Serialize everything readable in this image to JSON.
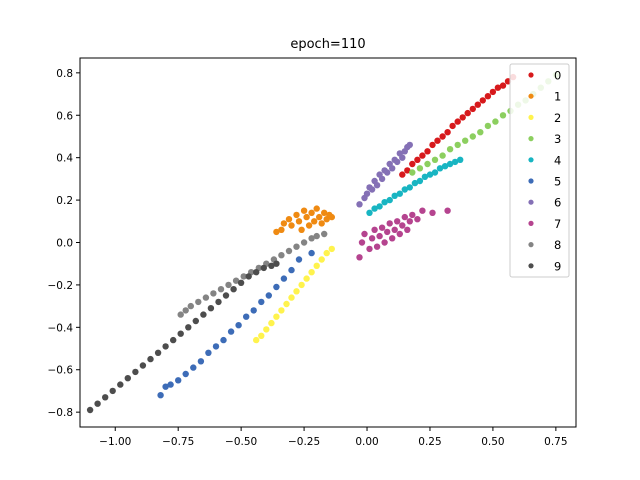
{
  "chart_data": {
    "type": "scatter",
    "title": "epoch=110",
    "xlabel": "",
    "ylabel": "",
    "xlim": [
      -1.14,
      0.83
    ],
    "ylim": [
      -0.87,
      0.87
    ],
    "xticks": [
      -1.0,
      -0.75,
      -0.5,
      -0.25,
      0.0,
      0.25,
      0.5,
      0.75
    ],
    "xtick_labels": [
      "−1.00",
      "−0.75",
      "−0.50",
      "−0.25",
      "0.00",
      "0.25",
      "0.50",
      "0.75"
    ],
    "yticks": [
      -0.8,
      -0.6,
      -0.4,
      -0.2,
      0.0,
      0.2,
      0.4,
      0.6,
      0.8
    ],
    "ytick_labels": [
      "−0.8",
      "−0.6",
      "−0.4",
      "−0.2",
      "0.0",
      "0.2",
      "0.4",
      "0.6",
      "0.8"
    ],
    "grid": false,
    "legend_position": "top-right",
    "series": [
      {
        "name": "0",
        "color": "#d7191c",
        "points": [
          [
            0.14,
            0.32
          ],
          [
            0.16,
            0.34
          ],
          [
            0.18,
            0.37
          ],
          [
            0.2,
            0.39
          ],
          [
            0.22,
            0.41
          ],
          [
            0.24,
            0.43
          ],
          [
            0.26,
            0.46
          ],
          [
            0.28,
            0.48
          ],
          [
            0.3,
            0.5
          ],
          [
            0.32,
            0.52
          ],
          [
            0.34,
            0.55
          ],
          [
            0.36,
            0.57
          ],
          [
            0.38,
            0.59
          ],
          [
            0.4,
            0.61
          ],
          [
            0.42,
            0.63
          ],
          [
            0.44,
            0.65
          ],
          [
            0.46,
            0.67
          ],
          [
            0.48,
            0.69
          ],
          [
            0.5,
            0.71
          ],
          [
            0.52,
            0.73
          ],
          [
            0.54,
            0.74
          ],
          [
            0.56,
            0.76
          ],
          [
            0.58,
            0.78
          ]
        ]
      },
      {
        "name": "1",
        "color": "#ef8a12",
        "points": [
          [
            -0.36,
            0.05
          ],
          [
            -0.34,
            0.06
          ],
          [
            -0.33,
            0.09
          ],
          [
            -0.31,
            0.11
          ],
          [
            -0.3,
            0.08
          ],
          [
            -0.28,
            0.13
          ],
          [
            -0.27,
            0.1
          ],
          [
            -0.26,
            0.06
          ],
          [
            -0.25,
            0.15
          ],
          [
            -0.24,
            0.12
          ],
          [
            -0.23,
            0.08
          ],
          [
            -0.22,
            0.14
          ],
          [
            -0.21,
            0.1
          ],
          [
            -0.2,
            0.16
          ],
          [
            -0.19,
            0.12
          ],
          [
            -0.18,
            0.09
          ],
          [
            -0.17,
            0.14
          ],
          [
            -0.16,
            0.11
          ],
          [
            -0.15,
            0.13
          ],
          [
            -0.14,
            0.12
          ]
        ]
      },
      {
        "name": "2",
        "color": "#fff34d",
        "points": [
          [
            -0.44,
            -0.46
          ],
          [
            -0.42,
            -0.44
          ],
          [
            -0.4,
            -0.41
          ],
          [
            -0.38,
            -0.38
          ],
          [
            -0.36,
            -0.35
          ],
          [
            -0.34,
            -0.32
          ],
          [
            -0.32,
            -0.29
          ],
          [
            -0.3,
            -0.26
          ],
          [
            -0.28,
            -0.23
          ],
          [
            -0.26,
            -0.2
          ],
          [
            -0.24,
            -0.17
          ],
          [
            -0.22,
            -0.14
          ],
          [
            -0.2,
            -0.11
          ],
          [
            -0.18,
            -0.08
          ],
          [
            -0.16,
            -0.05
          ],
          [
            -0.14,
            -0.03
          ]
        ]
      },
      {
        "name": "3",
        "color": "#8ccf5f",
        "points": [
          [
            0.18,
            0.33
          ],
          [
            0.21,
            0.35
          ],
          [
            0.24,
            0.37
          ],
          [
            0.27,
            0.39
          ],
          [
            0.3,
            0.41
          ],
          [
            0.33,
            0.44
          ],
          [
            0.36,
            0.46
          ],
          [
            0.39,
            0.48
          ],
          [
            0.42,
            0.5
          ],
          [
            0.45,
            0.52
          ],
          [
            0.48,
            0.55
          ],
          [
            0.51,
            0.57
          ],
          [
            0.54,
            0.6
          ],
          [
            0.57,
            0.62
          ],
          [
            0.6,
            0.65
          ],
          [
            0.63,
            0.67
          ],
          [
            0.66,
            0.7
          ],
          [
            0.69,
            0.73
          ],
          [
            0.72,
            0.76
          ],
          [
            0.75,
            0.79
          ]
        ]
      },
      {
        "name": "4",
        "color": "#18b5c2",
        "points": [
          [
            0.01,
            0.14
          ],
          [
            0.03,
            0.16
          ],
          [
            0.05,
            0.17
          ],
          [
            0.07,
            0.19
          ],
          [
            0.09,
            0.2
          ],
          [
            0.11,
            0.22
          ],
          [
            0.13,
            0.23
          ],
          [
            0.15,
            0.25
          ],
          [
            0.17,
            0.26
          ],
          [
            0.19,
            0.28
          ],
          [
            0.21,
            0.29
          ],
          [
            0.23,
            0.31
          ],
          [
            0.25,
            0.32
          ],
          [
            0.27,
            0.33
          ],
          [
            0.29,
            0.35
          ],
          [
            0.31,
            0.36
          ],
          [
            0.33,
            0.37
          ],
          [
            0.35,
            0.38
          ],
          [
            0.37,
            0.39
          ]
        ]
      },
      {
        "name": "5",
        "color": "#3d6cb7",
        "points": [
          [
            -0.82,
            -0.72
          ],
          [
            -0.8,
            -0.68
          ],
          [
            -0.78,
            -0.67
          ],
          [
            -0.75,
            -0.65
          ],
          [
            -0.72,
            -0.62
          ],
          [
            -0.69,
            -0.59
          ],
          [
            -0.66,
            -0.56
          ],
          [
            -0.63,
            -0.52
          ],
          [
            -0.6,
            -0.49
          ],
          [
            -0.57,
            -0.46
          ],
          [
            -0.54,
            -0.42
          ],
          [
            -0.51,
            -0.39
          ],
          [
            -0.48,
            -0.35
          ],
          [
            -0.45,
            -0.32
          ],
          [
            -0.42,
            -0.28
          ],
          [
            -0.39,
            -0.25
          ],
          [
            -0.36,
            -0.21
          ],
          [
            -0.33,
            -0.17
          ],
          [
            -0.3,
            -0.13
          ],
          [
            -0.27,
            -0.08
          ],
          [
            -0.22,
            -0.05
          ]
        ]
      },
      {
        "name": "6",
        "color": "#8470b5",
        "points": [
          [
            -0.03,
            0.18
          ],
          [
            -0.01,
            0.21
          ],
          [
            0.0,
            0.23
          ],
          [
            0.01,
            0.26
          ],
          [
            0.02,
            0.25
          ],
          [
            0.03,
            0.29
          ],
          [
            0.04,
            0.27
          ],
          [
            0.05,
            0.32
          ],
          [
            0.06,
            0.3
          ],
          [
            0.07,
            0.34
          ],
          [
            0.08,
            0.33
          ],
          [
            0.09,
            0.37
          ],
          [
            0.1,
            0.35
          ],
          [
            0.11,
            0.39
          ],
          [
            0.12,
            0.38
          ],
          [
            0.13,
            0.42
          ],
          [
            0.14,
            0.4
          ],
          [
            0.15,
            0.43
          ],
          [
            0.16,
            0.45
          ],
          [
            0.17,
            0.46
          ]
        ]
      },
      {
        "name": "7",
        "color": "#b5448f",
        "points": [
          [
            -0.03,
            -0.07
          ],
          [
            -0.02,
            0.0
          ],
          [
            -0.01,
            0.04
          ],
          [
            0.01,
            -0.03
          ],
          [
            0.02,
            0.02
          ],
          [
            0.03,
            0.06
          ],
          [
            0.04,
            -0.02
          ],
          [
            0.05,
            0.03
          ],
          [
            0.06,
            0.07
          ],
          [
            0.07,
            0.0
          ],
          [
            0.08,
            0.05
          ],
          [
            0.09,
            0.09
          ],
          [
            0.1,
            0.02
          ],
          [
            0.11,
            0.06
          ],
          [
            0.12,
            0.1
          ],
          [
            0.13,
            0.04
          ],
          [
            0.14,
            0.08
          ],
          [
            0.15,
            0.12
          ],
          [
            0.16,
            0.06
          ],
          [
            0.17,
            0.1
          ],
          [
            0.18,
            0.13
          ],
          [
            0.2,
            0.11
          ],
          [
            0.22,
            0.15
          ],
          [
            0.26,
            0.14
          ],
          [
            0.32,
            0.15
          ]
        ]
      },
      {
        "name": "8",
        "color": "#848484",
        "points": [
          [
            -0.74,
            -0.34
          ],
          [
            -0.72,
            -0.32
          ],
          [
            -0.7,
            -0.3
          ],
          [
            -0.67,
            -0.28
          ],
          [
            -0.64,
            -0.26
          ],
          [
            -0.61,
            -0.24
          ],
          [
            -0.58,
            -0.22
          ],
          [
            -0.55,
            -0.2
          ],
          [
            -0.52,
            -0.18
          ],
          [
            -0.49,
            -0.16
          ],
          [
            -0.46,
            -0.14
          ],
          [
            -0.43,
            -0.12
          ],
          [
            -0.4,
            -0.1
          ],
          [
            -0.37,
            -0.08
          ],
          [
            -0.34,
            -0.06
          ],
          [
            -0.31,
            -0.04
          ],
          [
            -0.28,
            -0.02
          ],
          [
            -0.25,
            0.0
          ],
          [
            -0.22,
            0.02
          ],
          [
            -0.2,
            0.03
          ],
          [
            -0.17,
            0.04
          ]
        ]
      },
      {
        "name": "9",
        "color": "#4d4d4d",
        "points": [
          [
            -1.1,
            -0.79
          ],
          [
            -1.07,
            -0.76
          ],
          [
            -1.04,
            -0.73
          ],
          [
            -1.01,
            -0.7
          ],
          [
            -0.98,
            -0.67
          ],
          [
            -0.95,
            -0.64
          ],
          [
            -0.92,
            -0.61
          ],
          [
            -0.89,
            -0.58
          ],
          [
            -0.86,
            -0.55
          ],
          [
            -0.83,
            -0.52
          ],
          [
            -0.8,
            -0.49
          ],
          [
            -0.77,
            -0.46
          ],
          [
            -0.74,
            -0.43
          ],
          [
            -0.71,
            -0.4
          ],
          [
            -0.68,
            -0.37
          ],
          [
            -0.65,
            -0.34
          ],
          [
            -0.62,
            -0.31
          ],
          [
            -0.59,
            -0.28
          ],
          [
            -0.56,
            -0.25
          ],
          [
            -0.53,
            -0.22
          ],
          [
            -0.5,
            -0.19
          ],
          [
            -0.47,
            -0.16
          ],
          [
            -0.44,
            -0.14
          ],
          [
            -0.41,
            -0.12
          ],
          [
            -0.38,
            -0.11
          ],
          [
            -0.36,
            -0.1
          ]
        ]
      }
    ]
  }
}
